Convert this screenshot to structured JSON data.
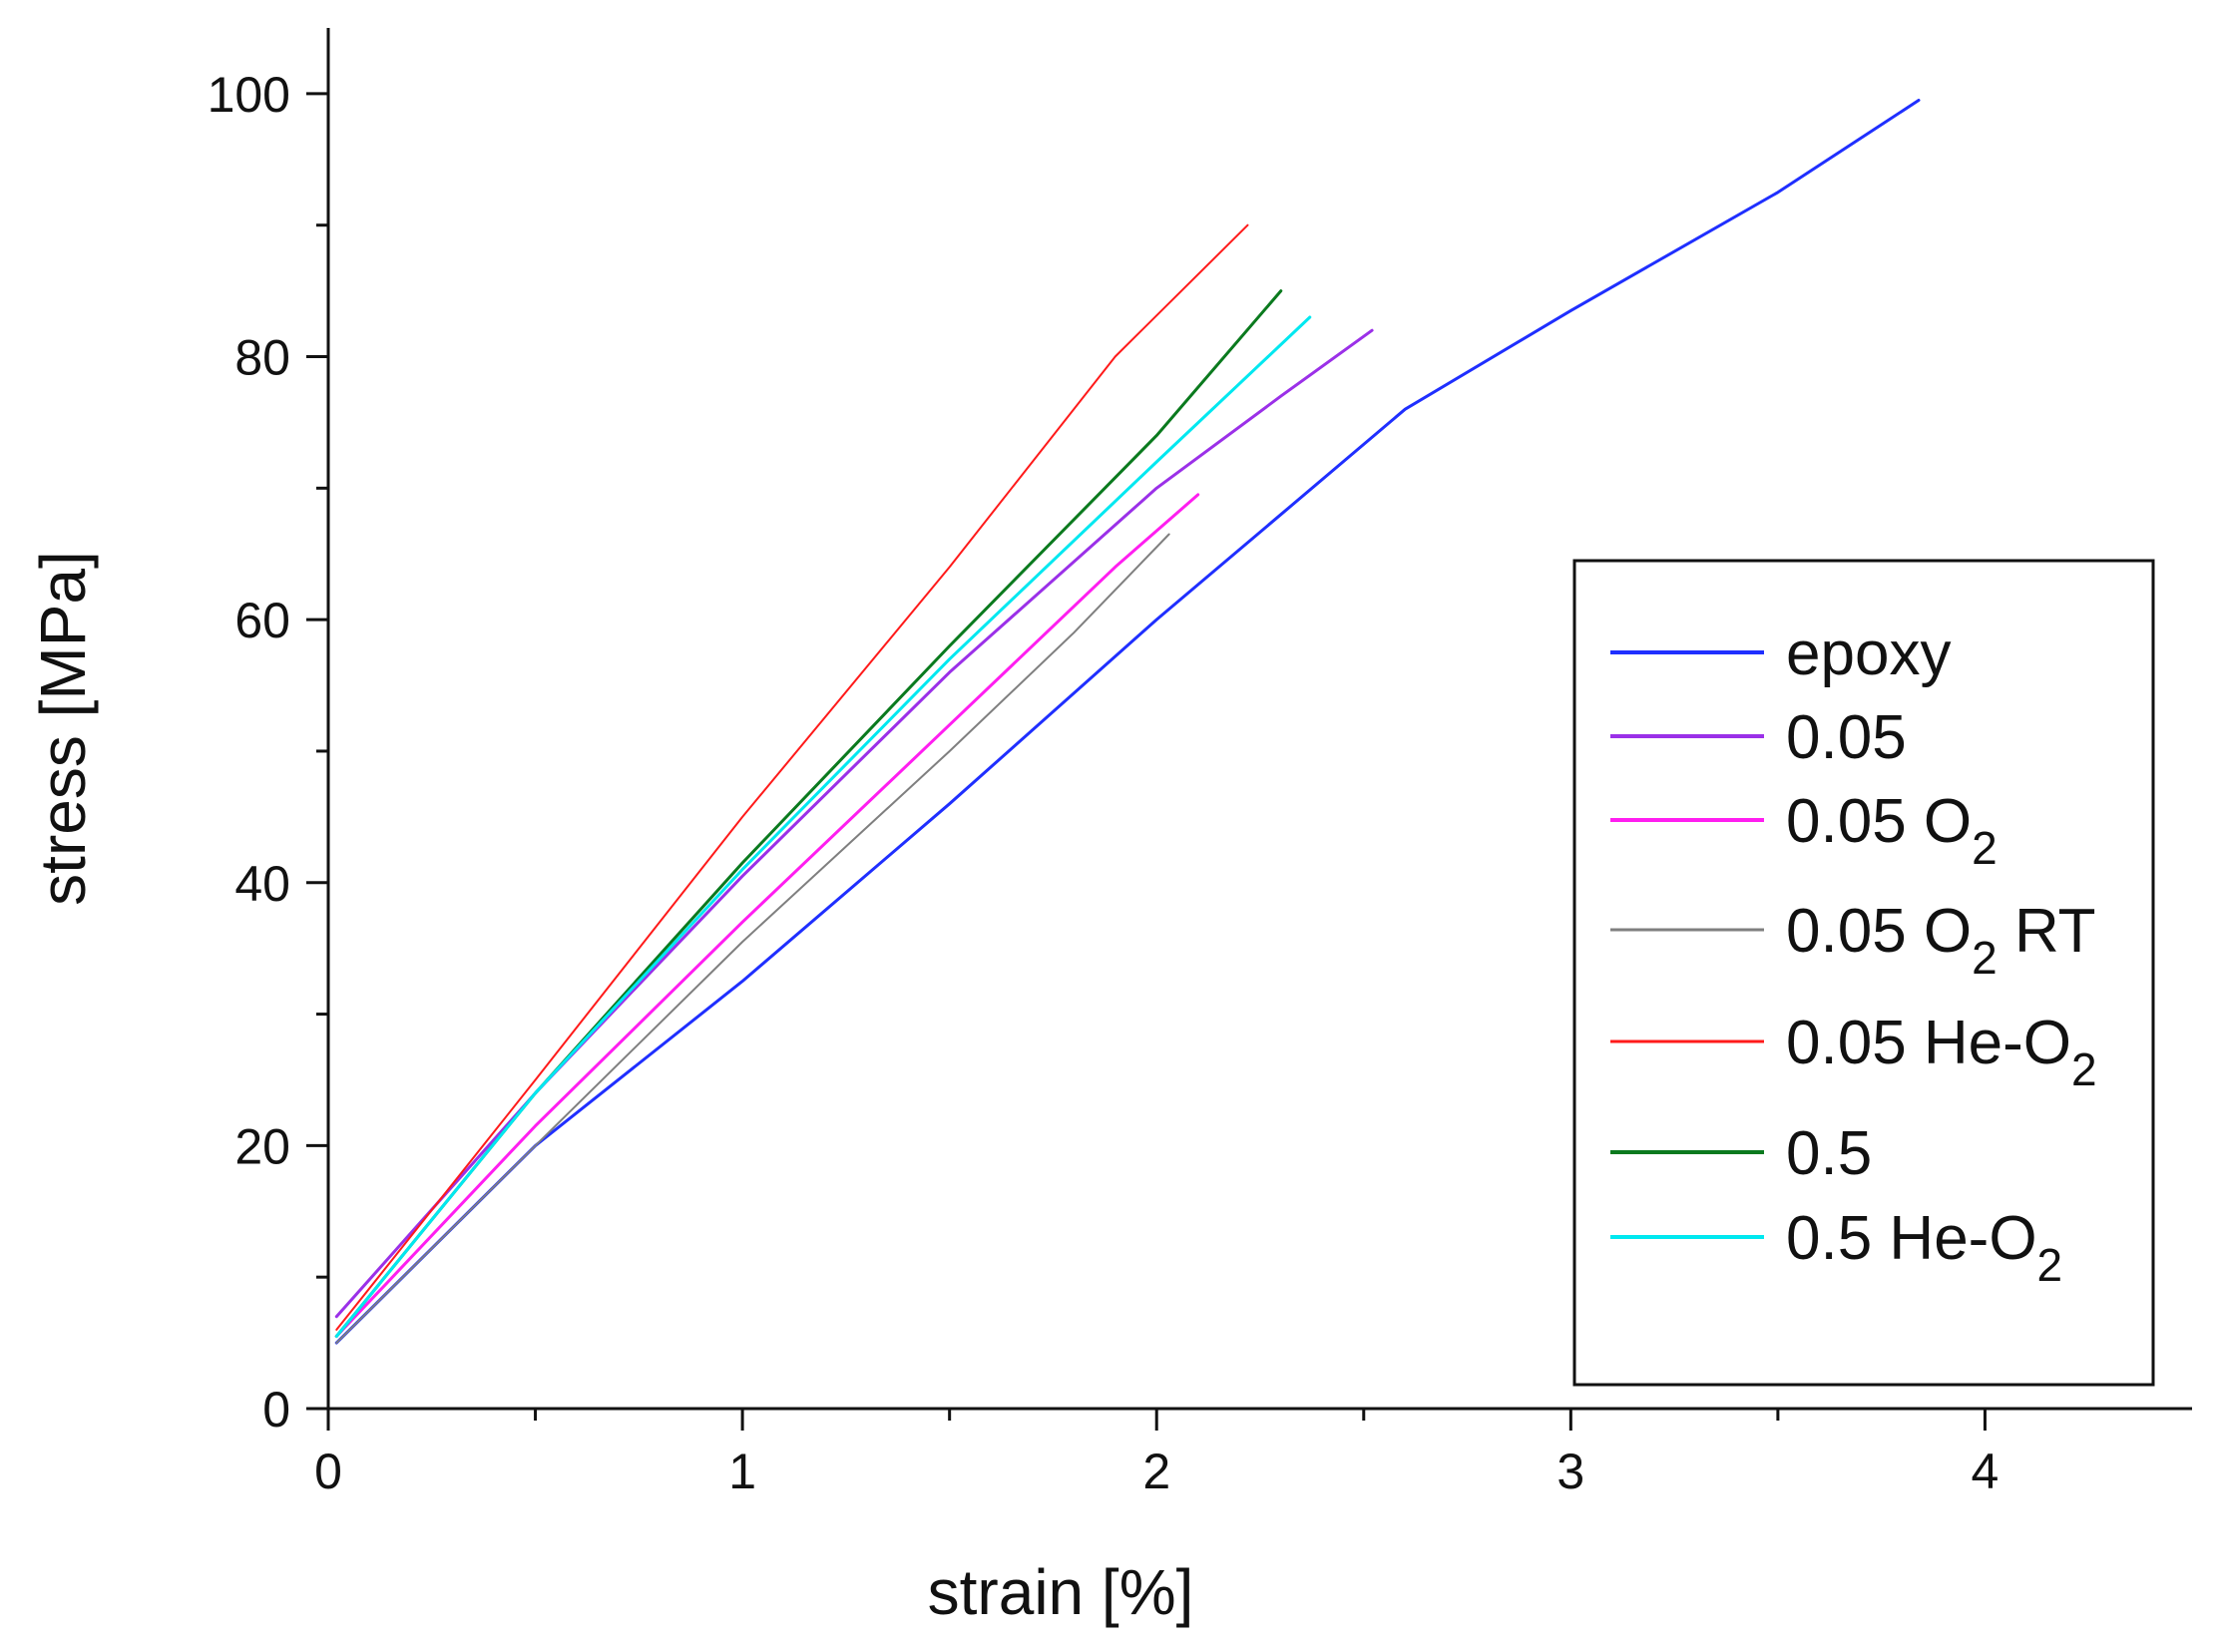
{
  "chart_data": {
    "type": "line",
    "title": "",
    "xlabel": "strain [%]",
    "ylabel": "stress [MPa]",
    "xlim": [
      0,
      4.5
    ],
    "ylim": [
      0,
      105
    ],
    "x_ticks": [
      0,
      1,
      2,
      3,
      4
    ],
    "x_tick_labels": [
      "0",
      "1",
      "2",
      "3",
      "4"
    ],
    "x_minor_ticks": [
      0.5,
      1.5,
      2.5,
      3.5
    ],
    "y_ticks": [
      0,
      20,
      40,
      60,
      80,
      100
    ],
    "y_tick_labels": [
      "0",
      "20",
      "40",
      "60",
      "80",
      "100"
    ],
    "y_minor_ticks": [
      10,
      30,
      50,
      70,
      90
    ],
    "grid": false,
    "legend_position": "right",
    "series": [
      {
        "name": "epoxy",
        "color": "#1f2fff",
        "stroke": 3,
        "legend": {
          "base": "epoxy",
          "sub": "",
          "suffix": ""
        },
        "x": [
          0.02,
          0.5,
          1.0,
          1.5,
          2.0,
          2.3,
          2.6,
          3.0,
          3.5,
          3.84
        ],
        "y": [
          5,
          20,
          32.5,
          46,
          60,
          68,
          76,
          83.5,
          92.5,
          99.5
        ]
      },
      {
        "name": "0.05",
        "color": "#9b30e8",
        "stroke": 3,
        "legend": {
          "base": "0.05",
          "sub": "",
          "suffix": ""
        },
        "x": [
          0.02,
          0.5,
          1.0,
          1.5,
          2.0,
          2.3,
          2.52
        ],
        "y": [
          7,
          24,
          40.5,
          56,
          70,
          77,
          82
        ]
      },
      {
        "name": "0.05 O2",
        "color": "#ff1ef0",
        "stroke": 3,
        "legend": {
          "base": "0.05 O",
          "sub": "2",
          "suffix": ""
        },
        "x": [
          0.02,
          0.5,
          1.0,
          1.5,
          1.9,
          2.1
        ],
        "y": [
          5.5,
          21.5,
          37,
          52,
          64,
          69.5
        ]
      },
      {
        "name": "0.05 O2 RT",
        "color": "#7f7f7f",
        "stroke": 2,
        "legend": {
          "base": "0.05 O",
          "sub": "2",
          "suffix": " RT"
        },
        "x": [
          0.02,
          0.5,
          1.0,
          1.5,
          1.8,
          2.03
        ],
        "y": [
          5,
          20,
          35.5,
          50,
          59,
          66.5
        ]
      },
      {
        "name": "0.05 He-O2",
        "color": "#ff1a1a",
        "stroke": 2,
        "legend": {
          "base": "0.05 He-O",
          "sub": "2",
          "suffix": ""
        },
        "x": [
          0.02,
          0.5,
          1.0,
          1.5,
          1.9,
          2.22
        ],
        "y": [
          6,
          25,
          45,
          64,
          80,
          90
        ]
      },
      {
        "name": "0.5",
        "color": "#0a7a1e",
        "stroke": 3,
        "legend": {
          "base": "0.5",
          "sub": "",
          "suffix": ""
        },
        "x": [
          0.02,
          0.5,
          1.0,
          1.5,
          2.0,
          2.3
        ],
        "y": [
          5.5,
          24,
          41.5,
          58,
          74,
          85
        ]
      },
      {
        "name": "0.5 He-O2",
        "color": "#00e8f0",
        "stroke": 3,
        "legend": {
          "base": "0.5 He-O",
          "sub": "2",
          "suffix": ""
        },
        "x": [
          0.02,
          0.5,
          1.0,
          1.5,
          2.0,
          2.37
        ],
        "y": [
          5.5,
          24,
          41,
          57,
          72,
          83
        ]
      }
    ]
  }
}
